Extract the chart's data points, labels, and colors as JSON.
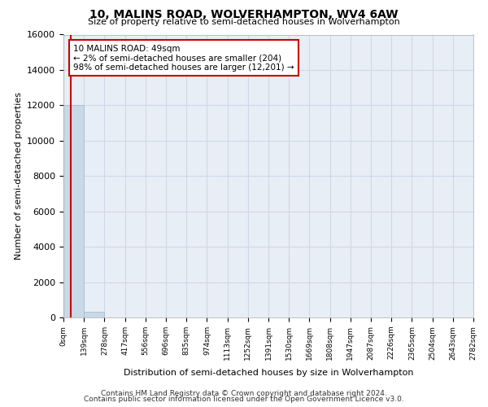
{
  "title": "10, MALINS ROAD, WOLVERHAMPTON, WV4 6AW",
  "subtitle": "Size of property relative to semi-detached houses in Wolverhampton",
  "xlabel": "Distribution of semi-detached houses by size in Wolverhampton",
  "ylabel": "Number of semi-detached properties",
  "footer_line1": "Contains HM Land Registry data © Crown copyright and database right 2024.",
  "footer_line2": "Contains public sector information licensed under the Open Government Licence v3.0.",
  "bin_labels": [
    "0sqm",
    "139sqm",
    "278sqm",
    "417sqm",
    "556sqm",
    "696sqm",
    "835sqm",
    "974sqm",
    "1113sqm",
    "1252sqm",
    "1391sqm",
    "1530sqm",
    "1669sqm",
    "1808sqm",
    "1947sqm",
    "2087sqm",
    "2226sqm",
    "2365sqm",
    "2504sqm",
    "2643sqm",
    "2782sqm"
  ],
  "bar_values": [
    12000,
    300,
    0,
    0,
    0,
    0,
    0,
    0,
    0,
    0,
    0,
    0,
    0,
    0,
    0,
    0,
    0,
    0,
    0,
    0
  ],
  "bar_color": "#c8d9e8",
  "bar_edge_color": "#a0b8cc",
  "ylim": [
    0,
    16000
  ],
  "yticks": [
    0,
    2000,
    4000,
    6000,
    8000,
    10000,
    12000,
    14000,
    16000
  ],
  "property_size": 49,
  "bin_width": 139,
  "red_line_color": "#cc0000",
  "annotation_text": "10 MALINS ROAD: 49sqm\n← 2% of semi-detached houses are smaller (204)\n98% of semi-detached houses are larger (12,201) →",
  "annotation_box_color": "#ffffff",
  "annotation_border_color": "#cc0000",
  "grid_color": "#d0d8e8",
  "bg_color": "#e8eef5"
}
